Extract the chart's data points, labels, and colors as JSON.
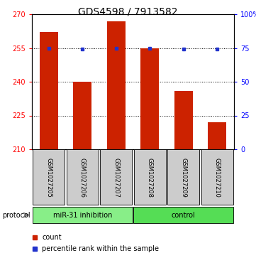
{
  "title": "GDS4598 / 7913582",
  "samples": [
    "GSM1027205",
    "GSM1027206",
    "GSM1027207",
    "GSM1027208",
    "GSM1027209",
    "GSM1027210"
  ],
  "counts": [
    262,
    240,
    267,
    255,
    236,
    222
  ],
  "percentiles": [
    75,
    74,
    75,
    75,
    74,
    74
  ],
  "ymin": 210,
  "ymax": 270,
  "yticks_left": [
    210,
    225,
    240,
    255,
    270
  ],
  "yticks_right": [
    0,
    25,
    50,
    75,
    100
  ],
  "grid_lines": [
    225,
    240,
    255
  ],
  "bar_color": "#cc2200",
  "dot_color": "#2233cc",
  "bar_width": 0.55,
  "label_color": "#cccccc",
  "group1_color": "#88ee88",
  "group2_color": "#55dd55",
  "group1_label": "miR-31 inhibition",
  "group2_label": "control",
  "protocol_label": "protocol",
  "legend_count": "count",
  "legend_pct": "percentile rank within the sample",
  "title_fontsize": 10,
  "tick_fontsize": 7,
  "sample_fontsize": 6,
  "legend_fontsize": 7,
  "proto_fontsize": 7
}
